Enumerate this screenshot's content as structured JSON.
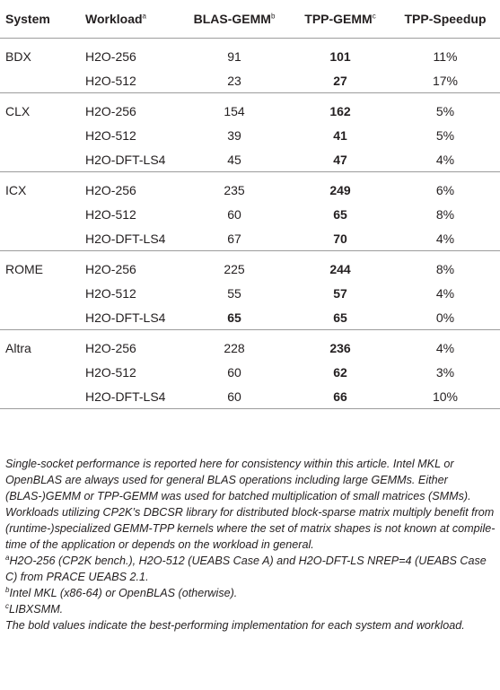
{
  "table": {
    "headers": {
      "system": "System",
      "workload": "Workload",
      "workload_sup": "a",
      "blas": "BLAS-GEMM",
      "blas_sup": "b",
      "tpp": "TPP-GEMM",
      "tpp_sup": "c",
      "speedup": "TPP-Speedup"
    },
    "groups": [
      {
        "system": "BDX",
        "rows": [
          {
            "workload": "H2O-256",
            "blas": "91",
            "tpp": "101",
            "speedup": "11%",
            "blas_bold": false,
            "tpp_bold": true
          },
          {
            "workload": "H2O-512",
            "blas": "23",
            "tpp": "27",
            "speedup": "17%",
            "blas_bold": false,
            "tpp_bold": true
          }
        ]
      },
      {
        "system": "CLX",
        "rows": [
          {
            "workload": "H2O-256",
            "blas": "154",
            "tpp": "162",
            "speedup": "5%",
            "blas_bold": false,
            "tpp_bold": true
          },
          {
            "workload": "H2O-512",
            "blas": "39",
            "tpp": "41",
            "speedup": "5%",
            "blas_bold": false,
            "tpp_bold": true
          },
          {
            "workload": "H2O-DFT-LS4",
            "blas": "45",
            "tpp": "47",
            "speedup": "4%",
            "blas_bold": false,
            "tpp_bold": true
          }
        ]
      },
      {
        "system": "ICX",
        "rows": [
          {
            "workload": "H2O-256",
            "blas": "235",
            "tpp": "249",
            "speedup": "6%",
            "blas_bold": false,
            "tpp_bold": true
          },
          {
            "workload": "H2O-512",
            "blas": "60",
            "tpp": "65",
            "speedup": "8%",
            "blas_bold": false,
            "tpp_bold": true
          },
          {
            "workload": "H2O-DFT-LS4",
            "blas": "67",
            "tpp": "70",
            "speedup": "4%",
            "blas_bold": false,
            "tpp_bold": true
          }
        ]
      },
      {
        "system": "ROME",
        "rows": [
          {
            "workload": "H2O-256",
            "blas": "225",
            "tpp": "244",
            "speedup": "8%",
            "blas_bold": false,
            "tpp_bold": true
          },
          {
            "workload": "H2O-512",
            "blas": "55",
            "tpp": "57",
            "speedup": "4%",
            "blas_bold": false,
            "tpp_bold": true
          },
          {
            "workload": "H2O-DFT-LS4",
            "blas": "65",
            "tpp": "65",
            "speedup": "0%",
            "blas_bold": true,
            "tpp_bold": true
          }
        ]
      },
      {
        "system": "Altra",
        "rows": [
          {
            "workload": "H2O-256",
            "blas": "228",
            "tpp": "236",
            "speedup": "4%",
            "blas_bold": false,
            "tpp_bold": true
          },
          {
            "workload": "H2O-512",
            "blas": "60",
            "tpp": "62",
            "speedup": "3%",
            "blas_bold": false,
            "tpp_bold": true
          },
          {
            "workload": "H2O-DFT-LS4",
            "blas": "60",
            "tpp": "66",
            "speedup": "10%",
            "blas_bold": false,
            "tpp_bold": true
          }
        ]
      }
    ]
  },
  "notes": {
    "main": "Single-socket performance is reported here for consistency within this article. Intel MKL or OpenBLAS are always used for general BLAS operations including large GEMMs. Either (BLAS-)GEMM or TPP-GEMM was used for batched multiplication of small matrices (SMMs). Workloads utilizing CP2K’s DBCSR library for distributed block-sparse matrix multiply benefit from (runtime-)specialized GEMM-TPP kernels where the set of matrix shapes is not known at compile-time of the application or depends on the workload in general.",
    "a_mark": "a",
    "a_text": "H2O-256 (CP2K bench.), H2O-512 (UEABS Case A) and H2O-DFT-LS NREP=4 (UEABS Case C) from PRACE UEABS 2.1.",
    "b_mark": "b",
    "b_text": "Intel MKL (x86-64) or OpenBLAS (otherwise).",
    "c_mark": "c",
    "c_text": "LIBXSMM.",
    "bold_note": "The bold values indicate the best-performing implementation for each system and workload."
  }
}
